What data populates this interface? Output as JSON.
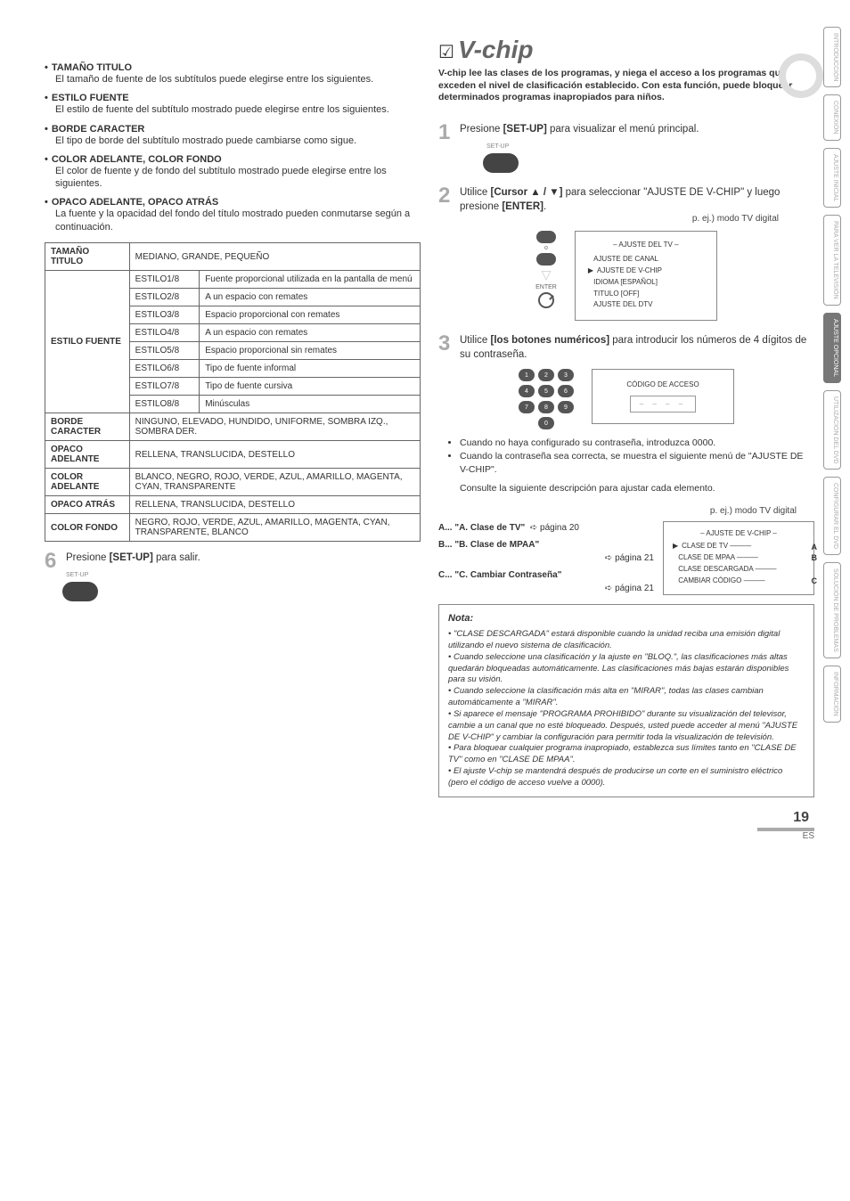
{
  "page_number": "19",
  "footer_code": "ES",
  "decoration": {
    "circle_border_color": "#dddddd"
  },
  "side_tabs": [
    {
      "label": "INTRODUCCIÓN",
      "active": false
    },
    {
      "label": "CONEXIÓN",
      "active": false
    },
    {
      "label": "AJUSTE INICIAL",
      "active": false
    },
    {
      "label": "PARA VER LA TELEVISIÓN",
      "active": false
    },
    {
      "label": "AJUSTE OPCIONAL",
      "active": true
    },
    {
      "label": "UTILIZACIÓN DEL DVD",
      "active": false
    },
    {
      "label": "CONFIGURAR EL DVD",
      "active": false
    },
    {
      "label": "SOLUCIÓN DE PROBLEMAS",
      "active": false
    },
    {
      "label": "INFORMACIÓN",
      "active": false
    }
  ],
  "vchip": {
    "check": "☑",
    "title": "V-chip",
    "intro": "V-chip lee las clases de los programas, y niega el acceso a los programas que exceden el nivel de clasificación establecido. Con esta función, puede bloquear determinados programas inapropiados para niños."
  },
  "left": {
    "bullets": [
      {
        "head": "TAMAÑO TITULO",
        "body": "El tamaño de fuente de los subtítulos puede elegirse entre los siguientes."
      },
      {
        "head": "ESTILO FUENTE",
        "body": "El estilo de fuente del subtítulo mostrado puede elegirse entre los siguientes."
      },
      {
        "head": "BORDE CARACTER",
        "body": "El tipo de borde del subtítulo mostrado puede cambiarse como sigue."
      },
      {
        "head": "COLOR ADELANTE, COLOR FONDO",
        "body": "El color de fuente y de fondo del subtítulo mostrado puede elegirse entre los siguientes."
      },
      {
        "head": "OPACO ADELANTE, OPACO ATRÁS",
        "body": "La fuente y la opacidad del fondo del título mostrado pueden conmutarse según a continuación."
      }
    ],
    "table": {
      "rows": [
        {
          "th": "TAMAÑO TITULO",
          "cells": [
            [
              "MEDIANO, GRANDE, PEQUEÑO"
            ]
          ]
        },
        {
          "th": "ESTILO FUENTE",
          "cells": [
            [
              "ESTILO1/8",
              "Fuente proporcional utilizada en la pantalla de menú"
            ],
            [
              "ESTILO2/8",
              "A un espacio con remates"
            ],
            [
              "ESTILO3/8",
              "Espacio proporcional con remates"
            ],
            [
              "ESTILO4/8",
              "A un espacio con remates"
            ],
            [
              "ESTILO5/8",
              "Espacio proporcional sin remates"
            ],
            [
              "ESTILO6/8",
              "Tipo de fuente informal"
            ],
            [
              "ESTILO7/8",
              "Tipo de fuente cursiva"
            ],
            [
              "ESTILO8/8",
              "Minúsculas"
            ]
          ]
        },
        {
          "th": "BORDE CARACTER",
          "cells": [
            [
              "NINGUNO, ELEVADO, HUNDIDO, UNIFORME, SOMBRA IZQ., SOMBRA DER."
            ]
          ]
        },
        {
          "th": "OPACO ADELANTE",
          "cells": [
            [
              "RELLENA, TRANSLUCIDA, DESTELLO"
            ]
          ]
        },
        {
          "th": "COLOR ADELANTE",
          "cells": [
            [
              "BLANCO, NEGRO, ROJO, VERDE, AZUL, AMARILLO, MAGENTA, CYAN, TRANSPARENTE"
            ]
          ]
        },
        {
          "th": "OPACO ATRÁS",
          "cells": [
            [
              "RELLENA, TRANSLUCIDA, DESTELLO"
            ]
          ]
        },
        {
          "th": "COLOR FONDO",
          "cells": [
            [
              "NEGRO, ROJO, VERDE, AZUL, AMARILLO, MAGENTA, CYAN, TRANSPARENTE, BLANCO"
            ]
          ]
        }
      ]
    },
    "step6": {
      "num": "6",
      "text_pre": "Presione ",
      "bold": "[SET-UP]",
      "text_post": " para salir.",
      "btn_label": "SET-UP"
    }
  },
  "right": {
    "step1": {
      "num": "1",
      "text_pre": "Presione ",
      "bold": "[SET-UP]",
      "text_post": " para visualizar el menú principal.",
      "btn_label": "SET-UP"
    },
    "step2": {
      "num": "2",
      "text_pre": "Utilice ",
      "bold": "[Cursor ▲ / ▼]",
      "text_mid": " para seleccionar \"AJUSTE DE V-CHIP\" y luego presione ",
      "bold2": "[ENTER]",
      "text_post": ".",
      "caption": "p. ej.) modo TV digital",
      "screen_title": "– AJUSTE DEL TV –",
      "screen_lines": [
        {
          "ptr": "",
          "t": "AJUSTE DE CANAL"
        },
        {
          "ptr": "▶",
          "t": "AJUSTE DE V-CHIP"
        },
        {
          "ptr": "",
          "t": "IDIOMA [ESPAÑOL]"
        },
        {
          "ptr": "",
          "t": "TITULO [OFF]"
        },
        {
          "ptr": "",
          "t": "AJUSTE DEL DTV"
        }
      ],
      "enter_label": "ENTER",
      "o_label": "o"
    },
    "step3": {
      "num": "3",
      "text_pre": "Utilice ",
      "bold": "[los botones numéricos]",
      "text_post": " para introducir los números de 4 dígitos de su contraseña.",
      "code_title": "CÓDIGO DE ACCESO",
      "code_value": "– – – –",
      "bullets": [
        "Cuando no haya configurado su contraseña, introduzca 0000.",
        "Cuando la contraseña sea correcta, se muestra el siguiente menú de \"AJUSTE DE V-CHIP\"."
      ],
      "tail": "Consulte la siguiente descripción para ajustar cada elemento."
    },
    "abc": {
      "caption": "p. ej.) modo TV digital",
      "A": {
        "label": "A... \"A. Clase de TV\"",
        "ref": "➪ página 20"
      },
      "B": {
        "label": "B... \"B. Clase de MPAA\"",
        "ref": "➪ página 21"
      },
      "C": {
        "label": "C... \"C. Cambiar Contraseña\"",
        "ref": "➪ página 21"
      },
      "screen_title": "– AJUSTE DE V-CHIP –",
      "screen_lines": [
        {
          "ptr": "▶",
          "t": "CLASE DE TV",
          "m": "A"
        },
        {
          "ptr": "",
          "t": "CLASE DE MPAA",
          "m": "B"
        },
        {
          "ptr": "",
          "t": "CLASE DESCARGADA",
          "m": ""
        },
        {
          "ptr": "",
          "t": "CAMBIAR CÓDIGO",
          "m": "C"
        }
      ]
    },
    "note": {
      "title": "Nota:",
      "items": [
        "\"CLASE DESCARGADA\" estará disponible cuando la unidad reciba una emisión digital utilizando el nuevo sistema de clasificación.",
        "Cuando seleccione una clasificación y la ajuste en \"BLOQ.\", las clasificaciones más altas quedarán bloqueadas automáticamente. Las clasificaciones más bajas estarán disponibles para su visión.",
        "Cuando seleccione la clasificación más alta en \"MIRAR\", todas las clases cambian automáticamente a \"MIRAR\".",
        "Si aparece el mensaje \"PROGRAMA PROHIBIDO\" durante su visualización del televisor, cambie a un canal que no esté bloqueado. Después, usted puede acceder al menú \"AJUSTE DE V-CHIP\" y cambiar la configuración para permitir toda la visualización de televisión.",
        "Para bloquear cualquier programa inapropiado, establezca sus límites tanto en \"CLASE DE TV\" como en \"CLASE DE MPAA\".",
        "El ajuste V-chip se mantendrá después de producirse un corte en el suministro eléctrico (pero el código de acceso vuelve a 0000)."
      ]
    }
  }
}
